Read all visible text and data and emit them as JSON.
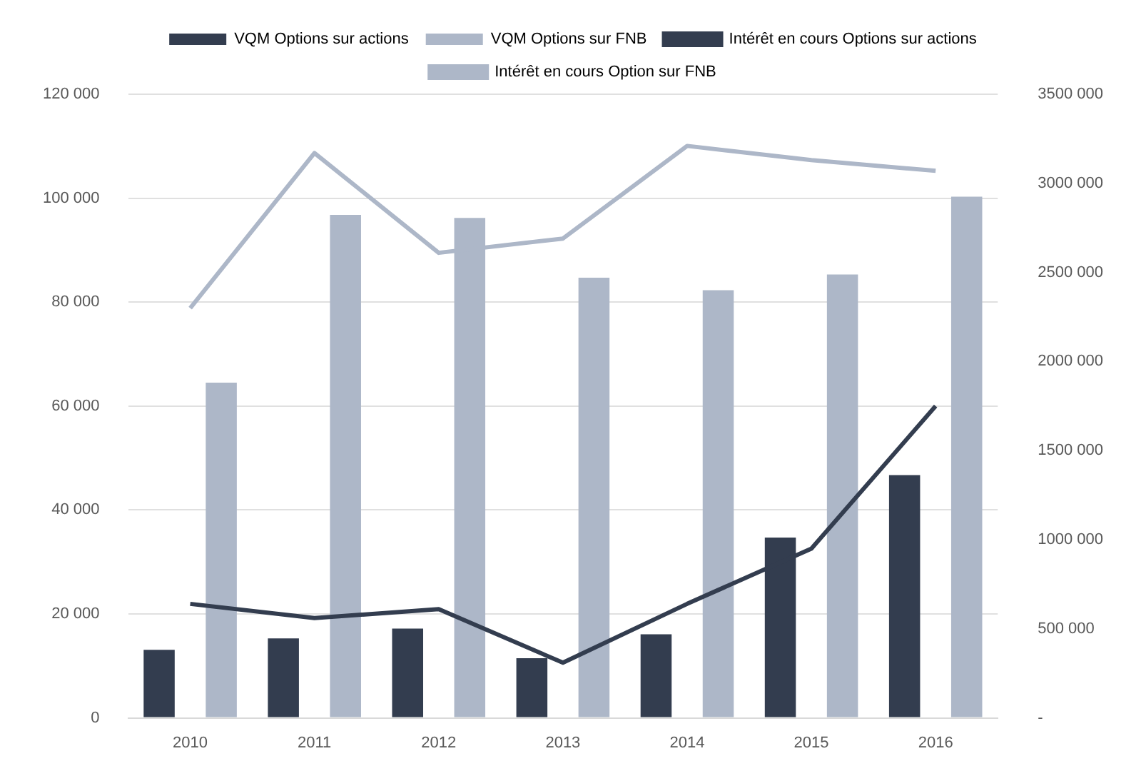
{
  "chart_data": {
    "type": "bar",
    "categories": [
      "2010",
      "2011",
      "2012",
      "2013",
      "2014",
      "2015",
      "2016"
    ],
    "series": [
      {
        "name": "VQM Options sur actions",
        "color": "#333d4f",
        "values": [
          13100,
          15300,
          17200,
          11500,
          16100,
          34700,
          46700
        ]
      },
      {
        "name": "VQM Options sur FNB",
        "color": "#adb7c8",
        "values": [
          64500,
          96800,
          96200,
          84700,
          82300,
          85300,
          100300
        ]
      },
      {
        "name": "Intérêt en cours Options sur actions",
        "type": "line",
        "axis": "y2",
        "color": "#333d4f",
        "values": [
          640000,
          560000,
          610000,
          310000,
          640000,
          950000,
          1750000
        ]
      },
      {
        "name": "Intérêt en cours Option sur FNB",
        "type": "line",
        "axis": "y2",
        "color": "#adb7c8",
        "values": [
          2300000,
          3170000,
          2610000,
          2690000,
          3210000,
          3130000,
          3070000
        ]
      }
    ],
    "ylim": [
      0,
      120000
    ],
    "yticks": [
      {
        "value": 0,
        "label": "0"
      },
      {
        "value": 20000,
        "label": "20 000"
      },
      {
        "value": 40000,
        "label": "40 000"
      },
      {
        "value": 60000,
        "label": "60 000"
      },
      {
        "value": 80000,
        "label": "80 000"
      },
      {
        "value": 100000,
        "label": "100 000"
      },
      {
        "value": 120000,
        "label": "120 000"
      }
    ],
    "y2lim": [
      0,
      3500000
    ],
    "y2ticks": [
      {
        "value": 0,
        "label": "-"
      },
      {
        "value": 500000,
        "label": "500 000"
      },
      {
        "value": 1000000,
        "label": "1000 000"
      },
      {
        "value": 1500000,
        "label": "1500 000"
      },
      {
        "value": 2000000,
        "label": "2000 000"
      },
      {
        "value": 2500000,
        "label": "2500 000"
      },
      {
        "value": 3000000,
        "label": "3000 000"
      },
      {
        "value": 3500000,
        "label": "3500 000"
      }
    ],
    "grid": "y",
    "legend": "top",
    "marker": "none",
    "line_style": "solid"
  }
}
